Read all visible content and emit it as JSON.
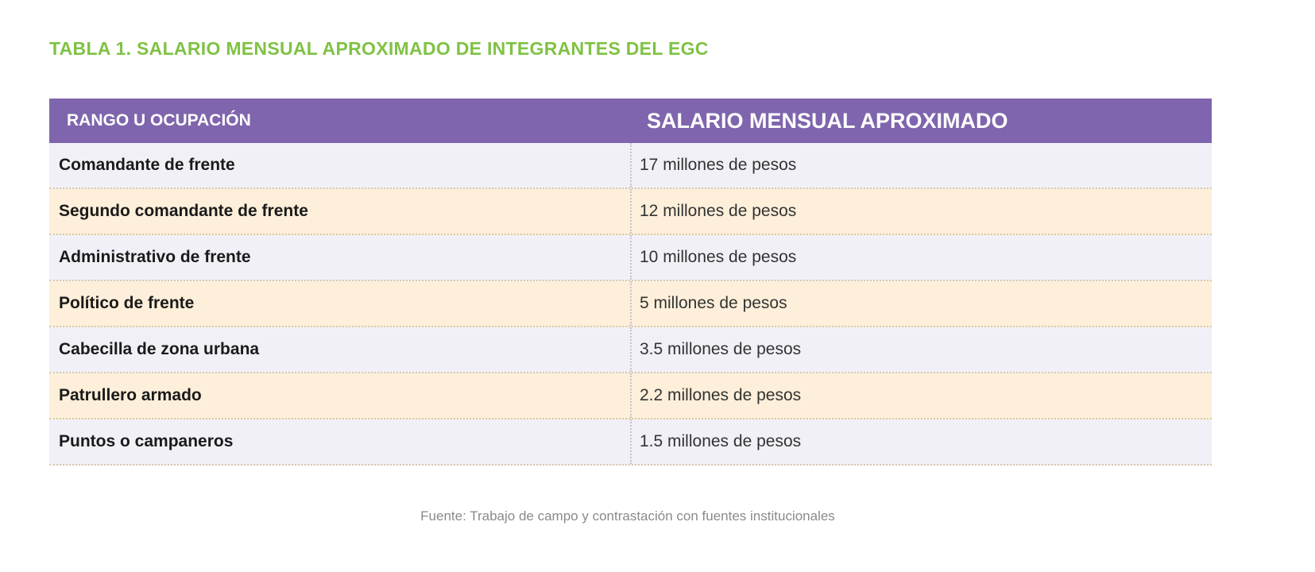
{
  "title": "TABLA 1. SALARIO MENSUAL APROXIMADO DE INTEGRANTES DEL EGC",
  "table": {
    "headers": [
      "RANGO U OCUPACIÓN",
      "SALARIO MENSUAL APROXIMADO"
    ],
    "rows": [
      [
        "Comandante de frente",
        "17 millones de pesos"
      ],
      [
        "Segundo comandante de frente",
        "12 millones de pesos"
      ],
      [
        "Administrativo de frente",
        "10 millones de pesos"
      ],
      [
        "Político de frente",
        "5 millones de pesos"
      ],
      [
        "Cabecilla de zona urbana",
        "3.5 millones de pesos"
      ],
      [
        "Patrullero armado",
        "2.2 millones de pesos"
      ],
      [
        "Puntos o campaneros",
        "1.5 millones de pesos"
      ]
    ]
  },
  "source": "Fuente: Trabajo de campo y contrastación con fuentes institucionales",
  "colors": {
    "title": "#7fc244",
    "header_bg": "#7f65ad",
    "row_odd": "#f1f0f7",
    "row_even": "#fdefd9"
  }
}
